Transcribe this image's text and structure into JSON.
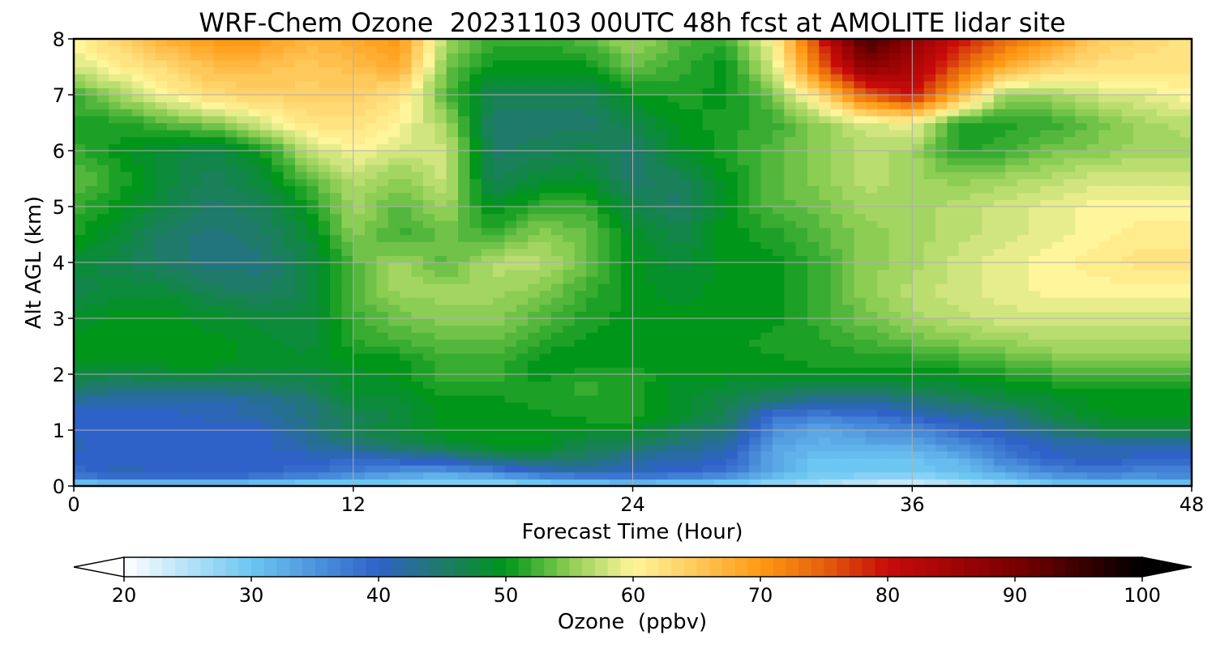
{
  "chart_data": {
    "type": "heatmap",
    "title": "WRF-Chem Ozone  20231103 00UTC 48h fcst at AMOLITE lidar site",
    "xlabel": "Forecast Time (Hour)",
    "ylabel": "Alt AGL (km)",
    "xlim": [
      0,
      48
    ],
    "ylim": [
      0,
      8
    ],
    "xticks": [
      0,
      12,
      24,
      36,
      48
    ],
    "yticks": [
      0,
      1,
      2,
      3,
      4,
      5,
      6,
      7,
      8
    ],
    "grid": true,
    "colorbar": {
      "label": "Ozone  (ppbv)",
      "range": [
        20,
        100
      ],
      "ticks": [
        20,
        30,
        40,
        50,
        60,
        70,
        80,
        90,
        100
      ],
      "extend": "both",
      "stops": [
        {
          "value": 20,
          "color": "#ffffff"
        },
        {
          "value": 30,
          "color": "#6cc6f2"
        },
        {
          "value": 40,
          "color": "#2f62c8"
        },
        {
          "value": 45,
          "color": "#1f7a6a"
        },
        {
          "value": 50,
          "color": "#00961a"
        },
        {
          "value": 55,
          "color": "#8ccd54"
        },
        {
          "value": 60,
          "color": "#fff59a"
        },
        {
          "value": 65,
          "color": "#ffc85a"
        },
        {
          "value": 70,
          "color": "#ff9a14"
        },
        {
          "value": 75,
          "color": "#e4600e"
        },
        {
          "value": 80,
          "color": "#c80a0a"
        },
        {
          "value": 90,
          "color": "#7a0000"
        },
        {
          "value": 100,
          "color": "#000000"
        }
      ]
    },
    "grid_x_hours": [
      0,
      2,
      4,
      6,
      8,
      10,
      12,
      14,
      16,
      18,
      20,
      22,
      24,
      26,
      28,
      30,
      32,
      34,
      36,
      38,
      40,
      42,
      44,
      46,
      48
    ],
    "grid_y_km": [
      0,
      0.1,
      0.3,
      0.5,
      0.75,
      1.0,
      1.25,
      1.5,
      1.75,
      2.0,
      2.25,
      2.5,
      3.0,
      3.5,
      4.0,
      4.5,
      5.0,
      5.5,
      6.0,
      6.5,
      7.0,
      7.5,
      8.0
    ],
    "values": [
      [
        22,
        22,
        22,
        22,
        22,
        22,
        24,
        27,
        28,
        27,
        26,
        25,
        25,
        25,
        26,
        25,
        24,
        21,
        20,
        22,
        24,
        26,
        27,
        25,
        25
      ],
      [
        36,
        38,
        38,
        38,
        37,
        35,
        33,
        31,
        29,
        30,
        33,
        35,
        36,
        35,
        33,
        30,
        28,
        27,
        26,
        28,
        30,
        33,
        34,
        34,
        35
      ],
      [
        39,
        41,
        40,
        40,
        40,
        39,
        38,
        36,
        36,
        38,
        41,
        42,
        41,
        40,
        39,
        33,
        30,
        30,
        30,
        31,
        34,
        37,
        38,
        37,
        37
      ],
      [
        40,
        40,
        40,
        40,
        40,
        40,
        40,
        41,
        42,
        45,
        46,
        45,
        42,
        41,
        41,
        33,
        30,
        30,
        30,
        32,
        37,
        40,
        41,
        40,
        40
      ],
      [
        41,
        40,
        40,
        40,
        40,
        42,
        44,
        46,
        48,
        50,
        50,
        47,
        46,
        44,
        42,
        34,
        32,
        33,
        33,
        36,
        39,
        41,
        41,
        41,
        41
      ],
      [
        40,
        40,
        40,
        40,
        40,
        43,
        47,
        48,
        50,
        50,
        50,
        49,
        49,
        46,
        44,
        36,
        33,
        35,
        36,
        39,
        41,
        44,
        47,
        48,
        47
      ],
      [
        40,
        40,
        40,
        41,
        42,
        44,
        46,
        48,
        50,
        50,
        50,
        51,
        51,
        49,
        46,
        38,
        37,
        38,
        40,
        42,
        43,
        47,
        49,
        50,
        50
      ],
      [
        42,
        41,
        41,
        41,
        42,
        44,
        48,
        48,
        50,
        50,
        51,
        51,
        51,
        49,
        47,
        44,
        42,
        42,
        43,
        45,
        47,
        48,
        50,
        50,
        50
      ],
      [
        45,
        44,
        44,
        44,
        45,
        46,
        49,
        49,
        51,
        51,
        51,
        52,
        51,
        49,
        48,
        47,
        46,
        46,
        47,
        48,
        49,
        50,
        50,
        50,
        50
      ],
      [
        48,
        47,
        48,
        48,
        47,
        47,
        49,
        50,
        52,
        52,
        50,
        51,
        51,
        50,
        50,
        50,
        50,
        50,
        50,
        50,
        51,
        52,
        52,
        52,
        52
      ],
      [
        50,
        50,
        50,
        50,
        49,
        49,
        50,
        50,
        52,
        52,
        50,
        50,
        50,
        50,
        50,
        50,
        51,
        51,
        51,
        52,
        53,
        54,
        54,
        54,
        54
      ],
      [
        50,
        50,
        50,
        50,
        49,
        48,
        51,
        52,
        53,
        53,
        51,
        50,
        50,
        50,
        50,
        51,
        51,
        52,
        53,
        54,
        55,
        56,
        56,
        56,
        56
      ],
      [
        49,
        50,
        50,
        49,
        48,
        48,
        52,
        54,
        55,
        55,
        53,
        51,
        50,
        50,
        50,
        50,
        52,
        54,
        56,
        57,
        58,
        58,
        58,
        58,
        58
      ],
      [
        47,
        48,
        48,
        46,
        45,
        47,
        53,
        56,
        56,
        56,
        55,
        52,
        50,
        49,
        50,
        50,
        52,
        55,
        57,
        58,
        59,
        60,
        60,
        60,
        60
      ],
      [
        48,
        47,
        45,
        44,
        44,
        47,
        53,
        56,
        53,
        57,
        57,
        54,
        50,
        48,
        50,
        50,
        52,
        55,
        56,
        58,
        59,
        60,
        61,
        62,
        62
      ],
      [
        51,
        48,
        45,
        44,
        45,
        48,
        55,
        52,
        54,
        52,
        55,
        54,
        49,
        47,
        50,
        51,
        53,
        55,
        56,
        57,
        58,
        59,
        60,
        61,
        61
      ],
      [
        52,
        50,
        47,
        45,
        46,
        50,
        56,
        53,
        56,
        49,
        52,
        52,
        47,
        45,
        50,
        53,
        54,
        56,
        56,
        57,
        58,
        59,
        60,
        60,
        60
      ],
      [
        54,
        51,
        48,
        46,
        48,
        53,
        57,
        55,
        58,
        46,
        48,
        49,
        45,
        46,
        50,
        53,
        55,
        57,
        56,
        55,
        56,
        57,
        58,
        58,
        58
      ],
      [
        52,
        50,
        48,
        47,
        50,
        57,
        60,
        58,
        58,
        45,
        46,
        47,
        45,
        49,
        51,
        53,
        55,
        57,
        56,
        51,
        52,
        54,
        55,
        56,
        56
      ],
      [
        51,
        51,
        53,
        55,
        58,
        62,
        62,
        60,
        56,
        45,
        45,
        45,
        47,
        50,
        51,
        52,
        55,
        58,
        60,
        51,
        51,
        52,
        54,
        56,
        57
      ],
      [
        52,
        56,
        60,
        63,
        64,
        64,
        64,
        62,
        53,
        46,
        46,
        46,
        50,
        51,
        50,
        54,
        63,
        75,
        80,
        68,
        55,
        56,
        58,
        59,
        60
      ],
      [
        58,
        61,
        63,
        66,
        66,
        65,
        66,
        68,
        54,
        50,
        50,
        50,
        54,
        52,
        50,
        58,
        74,
        88,
        84,
        75,
        68,
        64,
        62,
        62,
        62
      ],
      [
        60,
        64,
        68,
        70,
        70,
        67,
        68,
        70,
        56,
        52,
        52,
        53,
        56,
        53,
        52,
        60,
        78,
        95,
        88,
        80,
        74,
        70,
        65,
        63,
        62
      ]
    ]
  }
}
